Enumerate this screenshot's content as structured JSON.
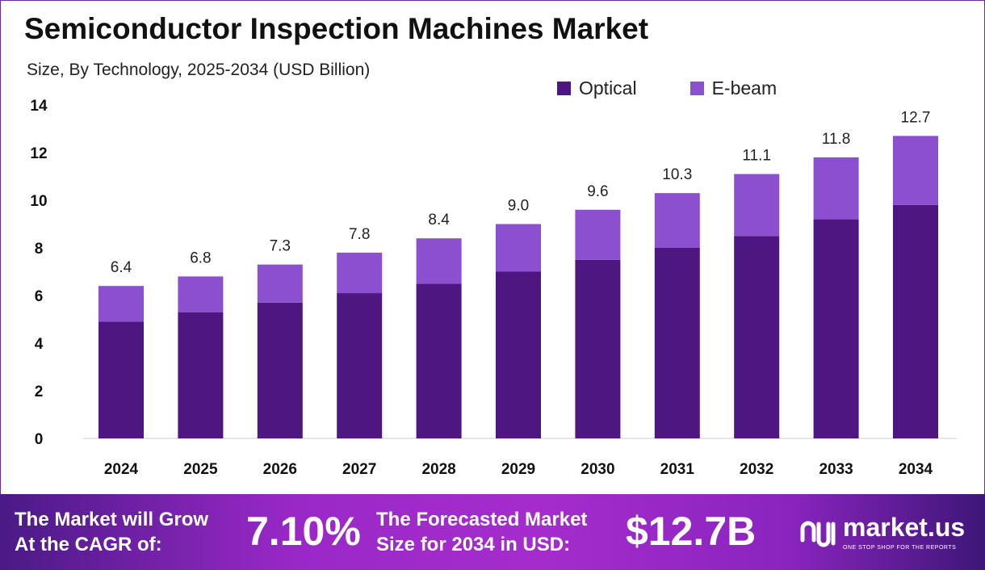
{
  "chart_data": {
    "type": "bar",
    "stacked": true,
    "title": "Semiconductor Inspection Machines Market",
    "subtitle": "Size, By Technology, 2025-2034 (USD Billion)",
    "categories": [
      "2024",
      "2025",
      "2026",
      "2027",
      "2028",
      "2029",
      "2030",
      "2031",
      "2032",
      "2033",
      "2034"
    ],
    "series": [
      {
        "name": "Optical",
        "color": "#4e1681",
        "values": [
          4.9,
          5.3,
          5.7,
          6.1,
          6.5,
          7.0,
          7.5,
          8.0,
          8.5,
          9.2,
          9.8
        ]
      },
      {
        "name": "E-beam",
        "color": "#8b4fd0",
        "values": [
          1.5,
          1.5,
          1.6,
          1.7,
          1.9,
          2.0,
          2.1,
          2.3,
          2.6,
          2.6,
          2.9
        ]
      }
    ],
    "totals": [
      "6.4",
      "6.8",
      "7.3",
      "7.8",
      "8.4",
      "9.0",
      "9.6",
      "10.3",
      "11.1",
      "11.8",
      "12.7"
    ],
    "ylim": [
      0,
      14
    ],
    "yticks": [
      "0",
      "2",
      "4",
      "6",
      "8",
      "10",
      "12",
      "14"
    ],
    "grid": false,
    "legend": "top-right"
  },
  "footer": {
    "cagr_label": "The Market will Grow At the CAGR of:",
    "cagr_value": "7.10%",
    "forecast_label": "The Forecasted Market Size for 2034 in USD:",
    "forecast_value": "$12.7B",
    "logo_name": "market.us",
    "logo_tagline": "ONE STOP SHOP FOR THE REPORTS"
  }
}
